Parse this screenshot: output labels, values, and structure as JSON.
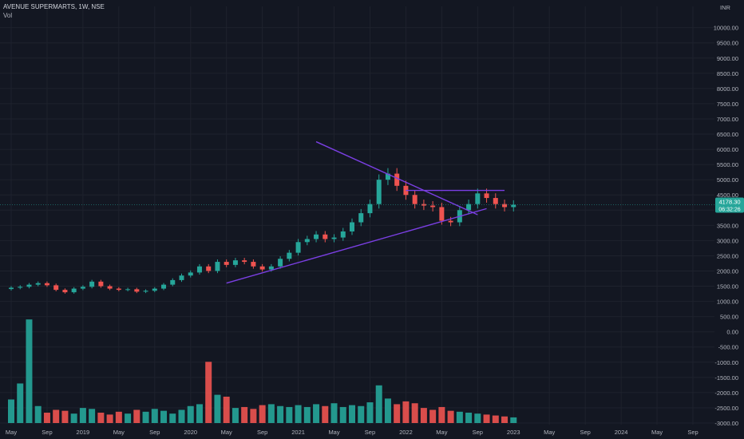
{
  "header": {
    "symbol_line": "AVENUE SUPERMARTS, 1W, NSE",
    "indicator": "Vol"
  },
  "currency": "INR",
  "price_label": {
    "value": "4178.30",
    "countdown": "06:32:26",
    "color": "#26a69a"
  },
  "colors": {
    "up": "#26a69a",
    "down": "#ef5350",
    "trendline": "#7b3fe4",
    "background": "#131722"
  },
  "chart_data": {
    "type": "candlestick",
    "title": "AVENUE SUPERMARTS, 1W, NSE",
    "ylabel": "INR",
    "ylim": [
      -3000,
      10700
    ],
    "y_ticks": [
      10000,
      9500,
      9000,
      8500,
      8000,
      7500,
      7000,
      6500,
      6000,
      5500,
      5000,
      4500,
      4000,
      3500,
      3000,
      2500,
      2000,
      1500,
      1000,
      500,
      0,
      -500,
      -1000,
      -1500,
      -2000,
      -2500,
      -3000
    ],
    "y_tick_labels": [
      "10000.00",
      "9500.00",
      "9000.00",
      "8500.00",
      "8000.00",
      "7500.00",
      "7000.00",
      "6500.00",
      "6000.00",
      "5500.00",
      "5000.00",
      "4500.00",
      "4000.00",
      "3500.00",
      "3000.00",
      "2500.00",
      "2000.00",
      "1500.00",
      "1000.00",
      "500.00",
      "0.00",
      "-500.00",
      "-1000.00",
      "-1500.00",
      "-2000.00",
      "-2500.00",
      "-3000.00"
    ],
    "x_ticks": [
      {
        "label": "May",
        "date": "2018-05"
      },
      {
        "label": "Sep",
        "date": "2018-09"
      },
      {
        "label": "2019",
        "date": "2019-01"
      },
      {
        "label": "May",
        "date": "2019-05"
      },
      {
        "label": "Sep",
        "date": "2019-09"
      },
      {
        "label": "2020",
        "date": "2020-01"
      },
      {
        "label": "May",
        "date": "2020-05"
      },
      {
        "label": "Sep",
        "date": "2020-09"
      },
      {
        "label": "2021",
        "date": "2021-01"
      },
      {
        "label": "May",
        "date": "2021-05"
      },
      {
        "label": "Sep",
        "date": "2021-09"
      },
      {
        "label": "2022",
        "date": "2022-01"
      },
      {
        "label": "May",
        "date": "2022-05"
      },
      {
        "label": "Sep",
        "date": "2022-09"
      },
      {
        "label": "2023",
        "date": "2023-01"
      },
      {
        "label": "May",
        "date": "2023-05"
      },
      {
        "label": "Sep",
        "date": "2023-09"
      },
      {
        "label": "2024",
        "date": "2024-01"
      },
      {
        "label": "May",
        "date": "2024-05"
      },
      {
        "label": "Sep",
        "date": "2024-09"
      }
    ],
    "price_series": [
      [
        "2018-05",
        1450
      ],
      [
        "2018-06",
        1480
      ],
      [
        "2018-07",
        1550
      ],
      [
        "2018-08",
        1600
      ],
      [
        "2018-09",
        1530
      ],
      [
        "2018-10",
        1380
      ],
      [
        "2018-11",
        1300
      ],
      [
        "2018-12",
        1420
      ],
      [
        "2019-01",
        1480
      ],
      [
        "2019-02",
        1650
      ],
      [
        "2019-03",
        1500
      ],
      [
        "2019-04",
        1420
      ],
      [
        "2019-05",
        1380
      ],
      [
        "2019-06",
        1400
      ],
      [
        "2019-07",
        1320
      ],
      [
        "2019-08",
        1350
      ],
      [
        "2019-09",
        1420
      ],
      [
        "2019-10",
        1550
      ],
      [
        "2019-11",
        1700
      ],
      [
        "2019-12",
        1850
      ],
      [
        "2020-01",
        1950
      ],
      [
        "2020-02",
        2150
      ],
      [
        "2020-03",
        2000
      ],
      [
        "2020-04",
        2300
      ],
      [
        "2020-05",
        2200
      ],
      [
        "2020-06",
        2350
      ],
      [
        "2020-07",
        2300
      ],
      [
        "2020-08",
        2150
      ],
      [
        "2020-09",
        2050
      ],
      [
        "2020-10",
        2150
      ],
      [
        "2020-11",
        2400
      ],
      [
        "2020-12",
        2600
      ],
      [
        "2021-01",
        2950
      ],
      [
        "2021-02",
        3050
      ],
      [
        "2021-03",
        3200
      ],
      [
        "2021-04",
        3050
      ],
      [
        "2021-05",
        3100
      ],
      [
        "2021-06",
        3300
      ],
      [
        "2021-07",
        3600
      ],
      [
        "2021-08",
        3900
      ],
      [
        "2021-09",
        4200
      ],
      [
        "2021-10",
        5000
      ],
      [
        "2021-11",
        5200
      ],
      [
        "2021-12",
        4800
      ],
      [
        "2022-01",
        4500
      ],
      [
        "2022-02",
        4200
      ],
      [
        "2022-03",
        4150
      ],
      [
        "2022-04",
        4100
      ],
      [
        "2022-05",
        3650
      ],
      [
        "2022-06",
        3600
      ],
      [
        "2022-07",
        4000
      ],
      [
        "2022-08",
        4200
      ],
      [
        "2022-09",
        4550
      ],
      [
        "2022-10",
        4400
      ],
      [
        "2022-11",
        4200
      ],
      [
        "2022-12",
        4100
      ],
      [
        "2023-01",
        4178.3
      ]
    ],
    "volume_series": [
      [
        "2018-05",
        250
      ],
      [
        "2018-06",
        420
      ],
      [
        "2018-07",
        1100
      ],
      [
        "2018-08",
        180
      ],
      [
        "2018-09",
        110
      ],
      [
        "2018-10",
        140
      ],
      [
        "2018-11",
        130
      ],
      [
        "2018-12",
        100
      ],
      [
        "2019-01",
        160
      ],
      [
        "2019-02",
        150
      ],
      [
        "2019-03",
        110
      ],
      [
        "2019-04",
        90
      ],
      [
        "2019-05",
        120
      ],
      [
        "2019-06",
        100
      ],
      [
        "2019-07",
        140
      ],
      [
        "2019-08",
        120
      ],
      [
        "2019-09",
        150
      ],
      [
        "2019-10",
        130
      ],
      [
        "2019-11",
        100
      ],
      [
        "2019-12",
        140
      ],
      [
        "2020-01",
        180
      ],
      [
        "2020-02",
        200
      ],
      [
        "2020-03",
        650
      ],
      [
        "2020-04",
        300
      ],
      [
        "2020-05",
        280
      ],
      [
        "2020-06",
        160
      ],
      [
        "2020-07",
        170
      ],
      [
        "2020-08",
        150
      ],
      [
        "2020-09",
        190
      ],
      [
        "2020-10",
        200
      ],
      [
        "2020-11",
        180
      ],
      [
        "2020-12",
        170
      ],
      [
        "2021-01",
        190
      ],
      [
        "2021-02",
        170
      ],
      [
        "2021-03",
        200
      ],
      [
        "2021-04",
        180
      ],
      [
        "2021-05",
        210
      ],
      [
        "2021-06",
        170
      ],
      [
        "2021-07",
        190
      ],
      [
        "2021-08",
        180
      ],
      [
        "2021-09",
        220
      ],
      [
        "2021-10",
        400
      ],
      [
        "2021-11",
        260
      ],
      [
        "2021-12",
        200
      ],
      [
        "2022-01",
        230
      ],
      [
        "2022-02",
        210
      ],
      [
        "2022-03",
        160
      ],
      [
        "2022-04",
        140
      ],
      [
        "2022-05",
        170
      ],
      [
        "2022-06",
        130
      ],
      [
        "2022-07",
        120
      ],
      [
        "2022-08",
        110
      ],
      [
        "2022-09",
        100
      ],
      [
        "2022-10",
        90
      ],
      [
        "2022-11",
        80
      ],
      [
        "2022-12",
        70
      ],
      [
        "2023-01",
        60
      ]
    ],
    "trendlines": [
      {
        "name": "descending",
        "from": [
          "2021-03",
          6250
        ],
        "to": [
          "2022-09",
          3850
        ]
      },
      {
        "name": "ascending",
        "from": [
          "2020-05",
          1600
        ],
        "to": [
          "2022-10",
          4050
        ]
      },
      {
        "name": "resistance",
        "from": [
          "2022-01",
          4650
        ],
        "to": [
          "2022-12",
          4650
        ]
      }
    ]
  }
}
